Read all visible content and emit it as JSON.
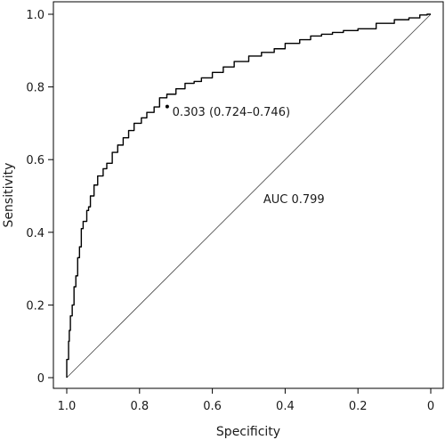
{
  "chart_data": {
    "type": "line",
    "xlabel": "Specificity",
    "ylabel": "Sensitivity",
    "x_reversed": true,
    "xlim": [
      1.0,
      0.0
    ],
    "ylim": [
      0.0,
      1.0
    ],
    "x_ticks": [
      {
        "value": 1.0,
        "label": "1.0"
      },
      {
        "value": 0.8,
        "label": "0.8"
      },
      {
        "value": 0.6,
        "label": "0.6"
      },
      {
        "value": 0.4,
        "label": "0.4"
      },
      {
        "value": 0.2,
        "label": "0.2"
      },
      {
        "value": 0.0,
        "label": "0"
      }
    ],
    "y_ticks": [
      {
        "value": 0.0,
        "label": "0"
      },
      {
        "value": 0.2,
        "label": "0.2"
      },
      {
        "value": 0.4,
        "label": "0.4"
      },
      {
        "value": 0.6,
        "label": "0.6"
      },
      {
        "value": 0.8,
        "label": "0.8"
      },
      {
        "value": 1.0,
        "label": "1.0"
      }
    ],
    "series": [
      {
        "specificity": [
          1.0,
          0.995,
          0.993,
          0.99,
          0.985,
          0.98,
          0.975,
          0.97,
          0.965,
          0.96,
          0.955,
          0.945,
          0.94,
          0.935,
          0.925,
          0.915,
          0.9,
          0.89,
          0.875,
          0.86,
          0.845,
          0.83,
          0.815,
          0.795,
          0.78,
          0.76,
          0.745,
          0.725,
          0.7,
          0.675,
          0.65,
          0.63,
          0.6,
          0.57,
          0.54,
          0.5,
          0.465,
          0.43,
          0.4,
          0.36,
          0.33,
          0.3,
          0.27,
          0.24,
          0.2,
          0.15,
          0.1,
          0.06,
          0.03,
          0.01,
          0.0
        ],
        "sensitivity": [
          0.0,
          0.05,
          0.1,
          0.13,
          0.17,
          0.2,
          0.25,
          0.28,
          0.33,
          0.36,
          0.41,
          0.43,
          0.46,
          0.47,
          0.5,
          0.53,
          0.555,
          0.575,
          0.59,
          0.62,
          0.64,
          0.66,
          0.68,
          0.7,
          0.715,
          0.73,
          0.745,
          0.77,
          0.78,
          0.795,
          0.81,
          0.815,
          0.825,
          0.84,
          0.855,
          0.87,
          0.885,
          0.895,
          0.905,
          0.92,
          0.93,
          0.94,
          0.945,
          0.95,
          0.955,
          0.96,
          0.975,
          0.985,
          0.99,
          0.998,
          1.0
        ]
      }
    ],
    "reference_line": {
      "from": [
        1.0,
        0.0
      ],
      "to": [
        0.0,
        1.0
      ]
    },
    "threshold_point": {
      "specificity": 0.724,
      "sensitivity": 0.746
    },
    "annotations": [
      {
        "name": "threshold-label",
        "text": "0.303 (0.724–0.746)",
        "x": 0.71,
        "y": 0.72
      },
      {
        "name": "auc-label",
        "text": "AUC 0.799",
        "x": 0.46,
        "y": 0.48
      }
    ],
    "grid": false,
    "legend": "none"
  }
}
